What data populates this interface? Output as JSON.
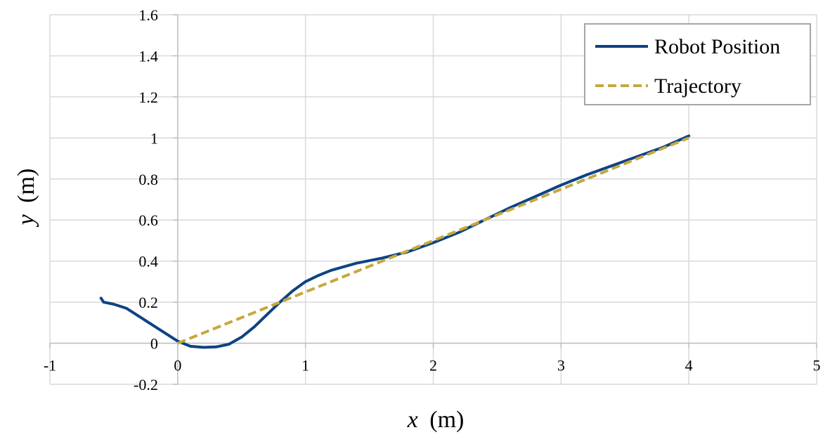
{
  "chart_data": {
    "type": "line",
    "title": "",
    "xlabel_var": "x",
    "xlabel_unit": "(m)",
    "ylabel_var": "y",
    "ylabel_unit": "(m)",
    "xlim": [
      -1,
      5
    ],
    "ylim": [
      -0.2,
      1.6
    ],
    "x_ticks": [
      -1,
      0,
      1,
      2,
      3,
      4,
      5
    ],
    "y_ticks": [
      -0.2,
      0,
      0.2,
      0.4,
      0.6,
      0.8,
      1,
      1.2,
      1.4,
      1.6
    ],
    "x_tick_labels": [
      "-1",
      "0",
      "1",
      "2",
      "3",
      "4",
      "5"
    ],
    "y_tick_labels": [
      "-0.2",
      "0",
      "0.2",
      "0.4",
      "0.6",
      "0.8",
      "1",
      "1.2",
      "1.4",
      "1.6"
    ],
    "grid": true,
    "legend_position": "top-right",
    "series": [
      {
        "name": "Robot Position",
        "color": "#0d4383",
        "style": "solid",
        "x": [
          -0.6,
          -0.58,
          -0.5,
          -0.4,
          -0.3,
          -0.2,
          -0.1,
          0,
          0.1,
          0.2,
          0.3,
          0.4,
          0.5,
          0.6,
          0.7,
          0.8,
          0.9,
          1.0,
          1.1,
          1.2,
          1.4,
          1.6,
          1.8,
          2.0,
          2.2,
          2.4,
          2.6,
          2.8,
          3.0,
          3.2,
          3.4,
          3.6,
          3.8,
          4.0
        ],
        "y": [
          0.22,
          0.2,
          0.19,
          0.17,
          0.13,
          0.09,
          0.05,
          0.01,
          -0.015,
          -0.02,
          -0.018,
          -0.005,
          0.03,
          0.08,
          0.14,
          0.2,
          0.255,
          0.3,
          0.33,
          0.355,
          0.39,
          0.415,
          0.445,
          0.49,
          0.54,
          0.6,
          0.66,
          0.715,
          0.77,
          0.82,
          0.865,
          0.91,
          0.955,
          1.01
        ]
      },
      {
        "name": "Trajectory",
        "color": "#c5a83d",
        "style": "dashed",
        "x": [
          0,
          4
        ],
        "y": [
          0,
          1
        ]
      }
    ]
  }
}
